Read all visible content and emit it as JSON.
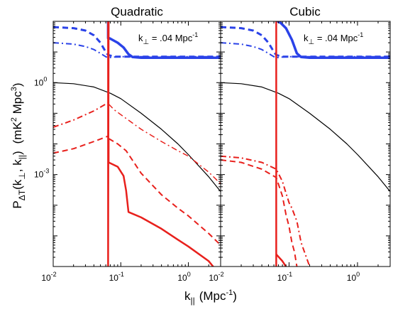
{
  "chart_data": {
    "type": "line",
    "xlabel": {
      "base": "k",
      "sub": "||",
      "unit": "(Mpc",
      "unit_exp": "-1",
      "close": ")"
    },
    "ylabel": {
      "base": "P",
      "sub": "ΔT",
      "args": "(k",
      "arg1_sub": "⊥",
      "mid": ", k",
      "arg2_sub": "||",
      "argclose": ")",
      "unit": "(mK",
      "unit_exp": "2",
      "unit_mid": " Mpc",
      "unit_exp2": "3",
      "close": ")"
    },
    "xscale": "log",
    "yscale": "log",
    "xlim": [
      0.01,
      3
    ],
    "ylim": [
      1e-06,
      100
    ],
    "x_ticks": [
      {
        "value": 0.01,
        "base": "10",
        "exp": "-2"
      },
      {
        "value": 0.1,
        "base": "10",
        "exp": "-1"
      },
      {
        "value": 1,
        "base": "10",
        "exp": "0"
      }
    ],
    "y_ticks": [
      {
        "value": 1,
        "base": "10",
        "exp": "0"
      },
      {
        "value": 0.001,
        "base": "10",
        "exp": "-3"
      }
    ],
    "annotation": {
      "base": "k",
      "sub": "⊥",
      "text": " = .04 Mpc",
      "exp": "-1"
    },
    "colors": {
      "blue": "#2a42e8",
      "red": "#e8201c",
      "black": "#000000"
    },
    "panels": [
      {
        "title": "Quadratic",
        "series": [
          {
            "color": "#000000",
            "style": "solid",
            "width": 1.2,
            "x": [
              0.01,
              0.02,
              0.04,
              0.07,
              0.1,
              0.2,
              0.4,
              0.7,
              1,
              2,
              3
            ],
            "y": [
              1,
              0.92,
              0.72,
              0.45,
              0.3,
              0.1,
              0.03,
              0.01,
              0.0045,
              0.00085,
              0.00028
            ]
          },
          {
            "color": "#2a42e8",
            "style": "dashed",
            "width": 3,
            "x": [
              0.01,
              0.02,
              0.03,
              0.04,
              0.05,
              0.06,
              0.065,
              0.08,
              0.1,
              3
            ],
            "y": [
              65,
              60,
              50,
              35,
              20,
              10,
              8,
              7,
              7,
              7
            ]
          },
          {
            "color": "#2a42e8",
            "style": "dashdot",
            "width": 2,
            "x": [
              0.01,
              0.02,
              0.03,
              0.04,
              0.05,
              0.06,
              0.065,
              0.08,
              0.1,
              3
            ],
            "y": [
              20,
              18,
              15,
              12,
              9,
              7,
              6.5,
              6.8,
              7,
              7
            ]
          },
          {
            "color": "#2a42e8",
            "style": "solid",
            "width": 3.5,
            "x": [
              0.065,
              0.065,
              0.068,
              0.075,
              0.09,
              0.11,
              0.13,
              0.15,
              0.2,
              3
            ],
            "y": [
              100,
              28,
              28,
              25,
              20,
              14,
              8.5,
              6.8,
              6.5,
              6.5
            ]
          },
          {
            "color": "#e8201c",
            "style": "dashdot",
            "width": 2,
            "x": [
              0.01,
              0.02,
              0.04,
              0.065
            ],
            "y": [
              0.035,
              0.06,
              0.12,
              0.22
            ]
          },
          {
            "color": "#e8201c",
            "style": "dashed",
            "width": 2,
            "x": [
              0.01,
              0.02,
              0.04,
              0.065
            ],
            "y": [
              0.005,
              0.007,
              0.012,
              0.018
            ]
          },
          {
            "color": "#e8201c",
            "style": "solid",
            "width": 2.5,
            "x": [
              0.065,
              0.065,
              0.066
            ],
            "y": [
              100,
              1e-06,
              100
            ]
          },
          {
            "color": "#e8201c",
            "style": "dashdot",
            "width": 1.5,
            "x": [
              0.066,
              0.08,
              0.1,
              0.2,
              0.4,
              0.7,
              1,
              2,
              3
            ],
            "y": [
              0.2,
              0.13,
              0.09,
              0.03,
              0.012,
              0.006,
              0.004,
              0.0012,
              0.0005
            ]
          },
          {
            "color": "#e8201c",
            "style": "dashed",
            "width": 2,
            "x": [
              0.066,
              0.09,
              0.12,
              0.2,
              0.4,
              0.7,
              1,
              2,
              3
            ],
            "y": [
              0.015,
              0.01,
              0.006,
              0.0011,
              0.00022,
              8e-05,
              4.5e-05,
              1.2e-05,
              5e-06
            ]
          },
          {
            "color": "#e8201c",
            "style": "solid",
            "width": 2.5,
            "x": [
              0.066,
              0.066,
              0.09,
              0.11,
              0.12,
              0.13,
              0.2,
              0.4,
              0.7,
              1,
              2,
              3
            ],
            "y": [
              0.015,
              0.0025,
              0.0018,
              0.0009,
              0.0003,
              6e-05,
              4e-05,
              1.7e-05,
              7.5e-06,
              4.5e-06,
              1.5e-06,
              5e-07
            ]
          }
        ]
      },
      {
        "title": "Cubic",
        "series": [
          {
            "color": "#000000",
            "style": "solid",
            "width": 1.2,
            "x": [
              0.01,
              0.02,
              0.04,
              0.07,
              0.1,
              0.2,
              0.4,
              0.7,
              1,
              2,
              3
            ],
            "y": [
              1,
              0.92,
              0.72,
              0.45,
              0.3,
              0.1,
              0.03,
              0.01,
              0.0045,
              0.00085,
              0.00028
            ]
          },
          {
            "color": "#2a42e8",
            "style": "dashed",
            "width": 3,
            "x": [
              0.01,
              0.02,
              0.03,
              0.04,
              0.05,
              0.06,
              0.065,
              0.08,
              0.1,
              3
            ],
            "y": [
              65,
              60,
              50,
              35,
              20,
              10,
              8,
              7,
              7,
              7
            ]
          },
          {
            "color": "#2a42e8",
            "style": "dashdot",
            "width": 2,
            "x": [
              0.01,
              0.02,
              0.03,
              0.04,
              0.05,
              0.06,
              0.065,
              0.08,
              0.1,
              3
            ],
            "y": [
              20,
              18,
              15,
              12,
              9,
              7,
              6.5,
              6.8,
              7,
              7
            ]
          },
          {
            "color": "#2a42e8",
            "style": "solid",
            "width": 3.5,
            "x": [
              0.065,
              0.065,
              0.068,
              0.075,
              0.09,
              0.11,
              0.13,
              0.15,
              0.2,
              3
            ],
            "y": [
              100,
              100,
              100,
              90,
              60,
              25,
              9,
              6.8,
              6.5,
              6.5
            ]
          },
          {
            "color": "#e8201c",
            "style": "solid",
            "width": 2.5,
            "x": [
              0.065,
              0.065
            ],
            "y": [
              100,
              1e-06
            ]
          },
          {
            "color": "#e8201c",
            "style": "dashdot",
            "width": 2,
            "x": [
              0.01,
              0.02,
              0.04,
              0.065,
              0.08,
              0.09,
              0.1,
              0.11,
              0.13,
              0.15,
              0.2
            ],
            "y": [
              0.004,
              0.0035,
              0.0025,
              0.0015,
              0.0006,
              0.00025,
              0.00012,
              8e-05,
              3e-05,
              6e-06,
              1e-06
            ]
          },
          {
            "color": "#e8201c",
            "style": "dashed",
            "width": 2,
            "x": [
              0.01,
              0.02,
              0.04,
              0.065,
              0.08,
              0.09,
              0.1,
              0.11,
              0.12,
              0.13
            ],
            "y": [
              0.003,
              0.0025,
              0.0015,
              0.0008,
              0.0002,
              5e-05,
              2e-05,
              6e-06,
              3e-06,
              1e-06
            ]
          },
          {
            "color": "#e8201c",
            "style": "solid",
            "width": 2.5,
            "x": [
              0.065,
              0.08,
              0.09
            ],
            "y": [
              2.5e-06,
              1.5e-06,
              1e-06
            ]
          }
        ]
      }
    ]
  }
}
